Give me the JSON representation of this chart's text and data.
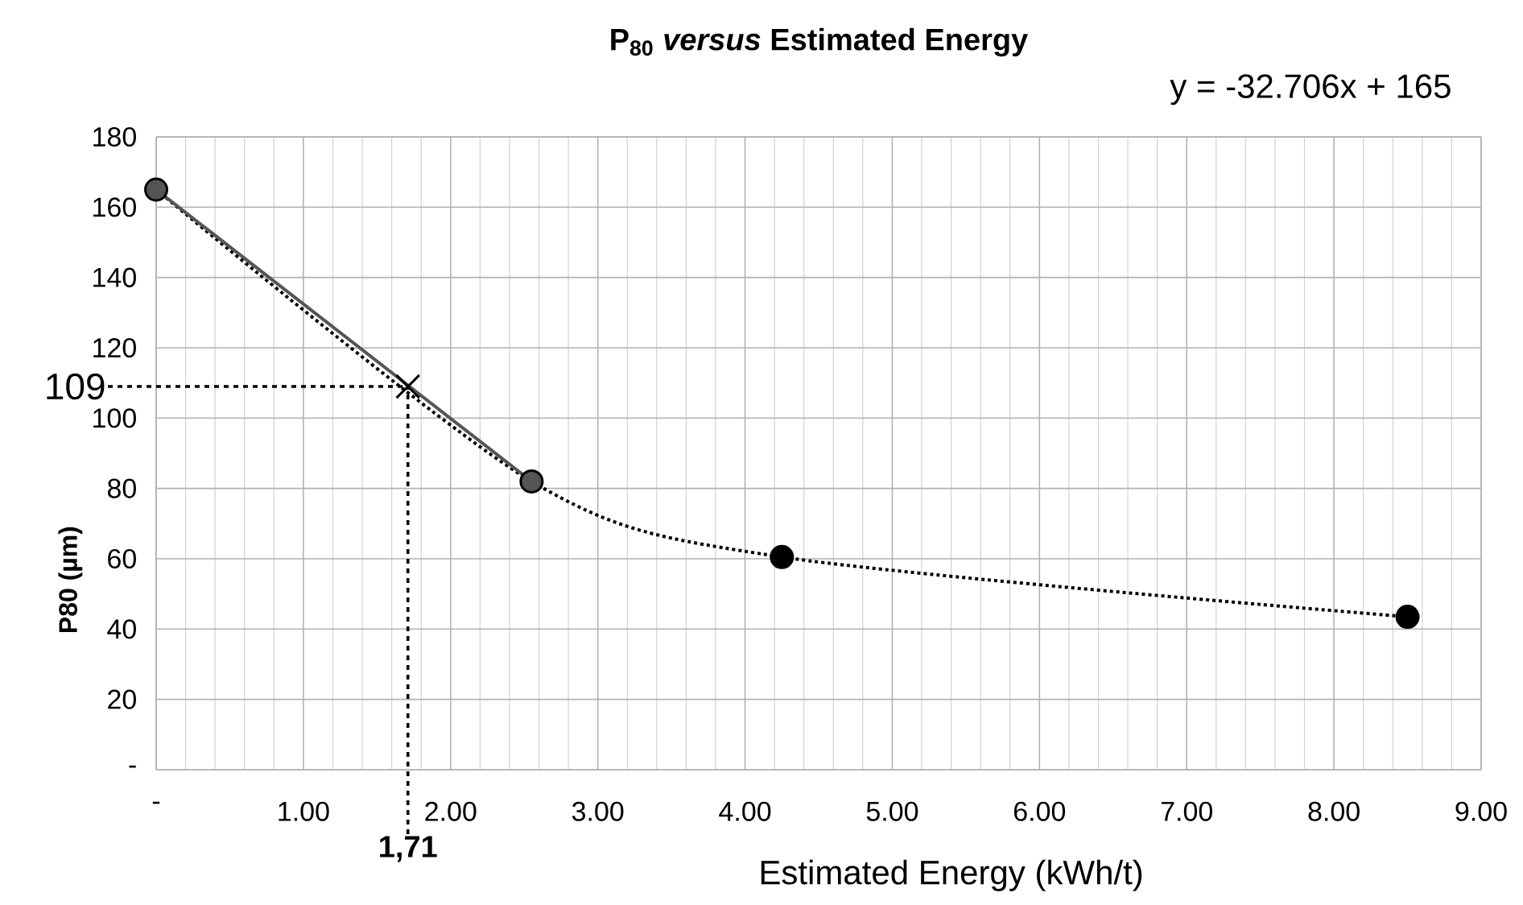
{
  "chart_data": {
    "type": "line",
    "title": "P$_{80}$ *versus* Estimated Energy",
    "xlabel": "Estimated Energy (kWh/t)",
    "ylabel": "P80 (µm)",
    "annotations": [
      "y = -32.706x + 165"
    ],
    "xlim": [
      0,
      9
    ],
    "ylim": [
      0,
      180
    ],
    "xticks": [
      {
        "value": 0,
        "label": "-"
      },
      {
        "value": 1,
        "label": "1.00"
      },
      {
        "value": 2,
        "label": "2.00"
      },
      {
        "value": 3,
        "label": "3.00"
      },
      {
        "value": 4,
        "label": "4.00"
      },
      {
        "value": 5,
        "label": "5.00"
      },
      {
        "value": 6,
        "label": "6.00"
      },
      {
        "value": 7,
        "label": "7.00"
      },
      {
        "value": 8,
        "label": "8.00"
      },
      {
        "value": 9,
        "label": "9.00"
      }
    ],
    "yticks": [
      {
        "value": 0,
        "label": "-"
      },
      20,
      40,
      60,
      80,
      100,
      120,
      140,
      160,
      180
    ],
    "grid": true,
    "marker": "circle",
    "series": [
      {
        "x": [
          0,
          2.55,
          4.25,
          8.5
        ],
        "values": [
          165,
          82,
          60.5,
          43.5
        ],
        "color": "#000000",
        "line_style": "dotted"
      },
      {
        "x": [
          0,
          2.55
        ],
        "values": [
          165,
          82
        ],
        "color": "#555555",
        "line_style": "solid"
      },
      {
        "type": "scatter",
        "x": [
          1.71
        ],
        "values": [
          109
        ],
        "color": "#000000",
        "marker": "cross"
      }
    ],
    "ref_lines": [
      {
        "axis": "y",
        "value": 109,
        "label": "109",
        "line_style": "dashed"
      },
      {
        "axis": "x",
        "value": 1.71,
        "label": "1,71",
        "line_style": "dashed"
      }
    ]
  }
}
